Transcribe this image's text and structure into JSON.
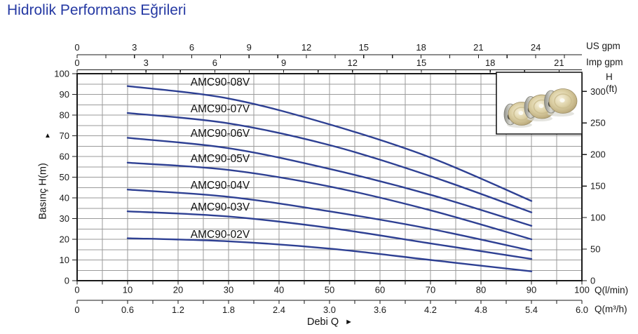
{
  "title": "Hidrolik Performans Eğrileri",
  "axis_labels": {
    "us_gpm": "US gpm",
    "imp_gpm": "Imp gpm",
    "q_lmin": "Q(l/min)",
    "q_m3h": "Q(m³/h)",
    "left_axis": "Basınç H(m)",
    "left_axis_arrow": "▲",
    "right_axis_h": "H",
    "right_axis_ft": "(ft)",
    "bottom_title": "Debi Q",
    "bottom_title_arrow": "►"
  },
  "colors": {
    "title_text": "#2539a3",
    "curve": "#2e4093",
    "grid": "#9a9a9a",
    "axis": "#1a1a1a",
    "text": "#1a1a1a"
  },
  "inset": {
    "description": "photo of three brass pump impellers with washers"
  },
  "chart_data": {
    "type": "line",
    "title": "Hidrolik Performans Eğrileri",
    "xlabel": "Debi Q",
    "ylabel": "Basınç H(m)",
    "grid": true,
    "legend_position": "labels-on-plot-left",
    "x_lmin": [
      10,
      30,
      50,
      70,
      90
    ],
    "series": [
      {
        "name": "AMC90-08V",
        "values_m": [
          94,
          88,
          75.5,
          59.5,
          38.5
        ]
      },
      {
        "name": "AMC90-07V",
        "values_m": [
          81,
          76,
          65.5,
          50.5,
          33
        ]
      },
      {
        "name": "AMC90-06V",
        "values_m": [
          69,
          64,
          54,
          41.5,
          26.5
        ]
      },
      {
        "name": "AMC90-05V",
        "values_m": [
          57,
          53.5,
          45.5,
          34,
          20
        ]
      },
      {
        "name": "AMC90-04V",
        "values_m": [
          44,
          40.5,
          33.5,
          25,
          14.5
        ]
      },
      {
        "name": "AMC90-03V",
        "values_m": [
          33.5,
          31,
          25.5,
          18,
          10.5
        ]
      },
      {
        "name": "AMC90-02V",
        "values_m": [
          20.5,
          19,
          15.5,
          10,
          4.5
        ]
      }
    ],
    "axes": {
      "bottom_lmin": {
        "unit": "Q(l/min)",
        "min": 0,
        "max": 100,
        "labels": [
          0,
          10,
          20,
          30,
          40,
          50,
          60,
          70,
          80,
          90,
          100
        ],
        "minor_step": 5
      },
      "bottom_m3h": {
        "unit": "Q(m³/h)",
        "min": 0,
        "max": 6,
        "labels": [
          0,
          0.6,
          1.2,
          1.8,
          2.4,
          3.0,
          3.6,
          4.2,
          4.8,
          5.4,
          6.0
        ],
        "minor_step": 0.3,
        "lmin_per_unit": 16.6667
      },
      "top_usgpm": {
        "unit": "US gpm",
        "labels": [
          0,
          3,
          6,
          9,
          12,
          15,
          18,
          21,
          24
        ],
        "minor_step": 1.5,
        "lmin_per_unit": 3.7854
      },
      "top_impgpm": {
        "unit": "Imp gpm",
        "labels": [
          0,
          3,
          6,
          9,
          12,
          15,
          18,
          21
        ],
        "minor_step": 1.5,
        "lmin_per_unit": 4.5461
      },
      "left_m": {
        "unit": "m",
        "min": 0,
        "max": 100,
        "labels": [
          0,
          10,
          20,
          30,
          40,
          50,
          60,
          70,
          80,
          90,
          100
        ],
        "grid_step": 5
      },
      "right_ft": {
        "unit": "ft",
        "labels": [
          0,
          50,
          100,
          150,
          200,
          250,
          300
        ],
        "m_per_unit": 0.3048
      }
    }
  }
}
